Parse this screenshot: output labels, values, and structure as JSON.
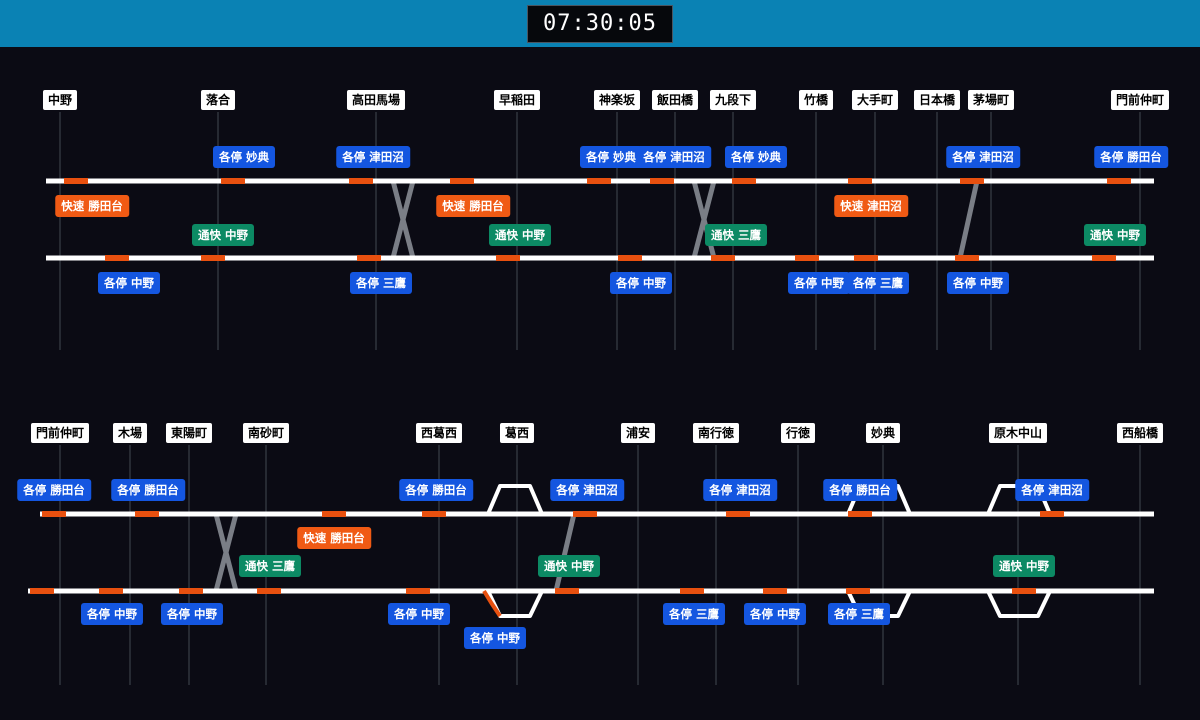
{
  "clock": {
    "time": "07:30:05"
  },
  "colors": {
    "local": "#1456e0",
    "rapid": "#f05a14",
    "commuter_rapid": "#0c8a64",
    "track": "#ffffff",
    "train_block": "#e8500f",
    "background": "#0b0b14",
    "header": "#0a82b4"
  },
  "panels": [
    {
      "stations": [
        {
          "name": "中野"
        },
        {
          "name": "落合"
        },
        {
          "name": "高田馬場"
        },
        {
          "name": "早稲田"
        },
        {
          "name": "神楽坂"
        },
        {
          "name": "飯田橋"
        },
        {
          "name": "九段下"
        },
        {
          "name": "竹橋"
        },
        {
          "name": "大手町"
        },
        {
          "name": "日本橋"
        },
        {
          "name": "茅場町"
        },
        {
          "name": "門前仲町"
        }
      ],
      "trains": [
        {
          "type": "local",
          "label": "各停 妙典"
        },
        {
          "type": "local",
          "label": "各停 津田沼"
        },
        {
          "type": "local",
          "label": "各停 妙典"
        },
        {
          "type": "local",
          "label": "各停 津田沼"
        },
        {
          "type": "local",
          "label": "各停 妙典"
        },
        {
          "type": "local",
          "label": "各停 津田沼"
        },
        {
          "type": "local",
          "label": "各停 勝田台"
        },
        {
          "type": "rapid",
          "label": "快速 勝田台"
        },
        {
          "type": "rapid",
          "label": "快速 勝田台"
        },
        {
          "type": "rapid",
          "label": "快速 津田沼"
        },
        {
          "type": "commuter_rapid",
          "label": "通快 中野"
        },
        {
          "type": "commuter_rapid",
          "label": "通快 中野"
        },
        {
          "type": "commuter_rapid",
          "label": "通快 三鷹"
        },
        {
          "type": "commuter_rapid",
          "label": "通快 中野"
        },
        {
          "type": "local",
          "label": "各停 中野"
        },
        {
          "type": "local",
          "label": "各停 三鷹"
        },
        {
          "type": "local",
          "label": "各停 中野"
        },
        {
          "type": "local",
          "label": "各停 中野"
        },
        {
          "type": "local",
          "label": "各停 三鷹"
        },
        {
          "type": "local",
          "label": "各停 中野"
        }
      ]
    },
    {
      "stations": [
        {
          "name": "門前仲町"
        },
        {
          "name": "木場"
        },
        {
          "name": "東陽町"
        },
        {
          "name": "南砂町"
        },
        {
          "name": "西葛西"
        },
        {
          "name": "葛西"
        },
        {
          "name": "浦安"
        },
        {
          "name": "南行徳"
        },
        {
          "name": "行徳"
        },
        {
          "name": "妙典"
        },
        {
          "name": "原木中山"
        },
        {
          "name": "西船橋"
        }
      ],
      "trains": [
        {
          "type": "local",
          "label": "各停 勝田台"
        },
        {
          "type": "local",
          "label": "各停 勝田台"
        },
        {
          "type": "local",
          "label": "各停 勝田台"
        },
        {
          "type": "local",
          "label": "各停 津田沼"
        },
        {
          "type": "local",
          "label": "各停 津田沼"
        },
        {
          "type": "local",
          "label": "各停 勝田台"
        },
        {
          "type": "local",
          "label": "各停 津田沼"
        },
        {
          "type": "rapid",
          "label": "快速 勝田台"
        },
        {
          "type": "commuter_rapid",
          "label": "通快 三鷹"
        },
        {
          "type": "commuter_rapid",
          "label": "通快 中野"
        },
        {
          "type": "commuter_rapid",
          "label": "通快 中野"
        },
        {
          "type": "local",
          "label": "各停 中野"
        },
        {
          "type": "local",
          "label": "各停 中野"
        },
        {
          "type": "local",
          "label": "各停 中野"
        },
        {
          "type": "local",
          "label": "各停 中野"
        },
        {
          "type": "local",
          "label": "各停 三鷹"
        },
        {
          "type": "local",
          "label": "各停 中野"
        },
        {
          "type": "local",
          "label": "各停 三鷹"
        }
      ]
    }
  ]
}
